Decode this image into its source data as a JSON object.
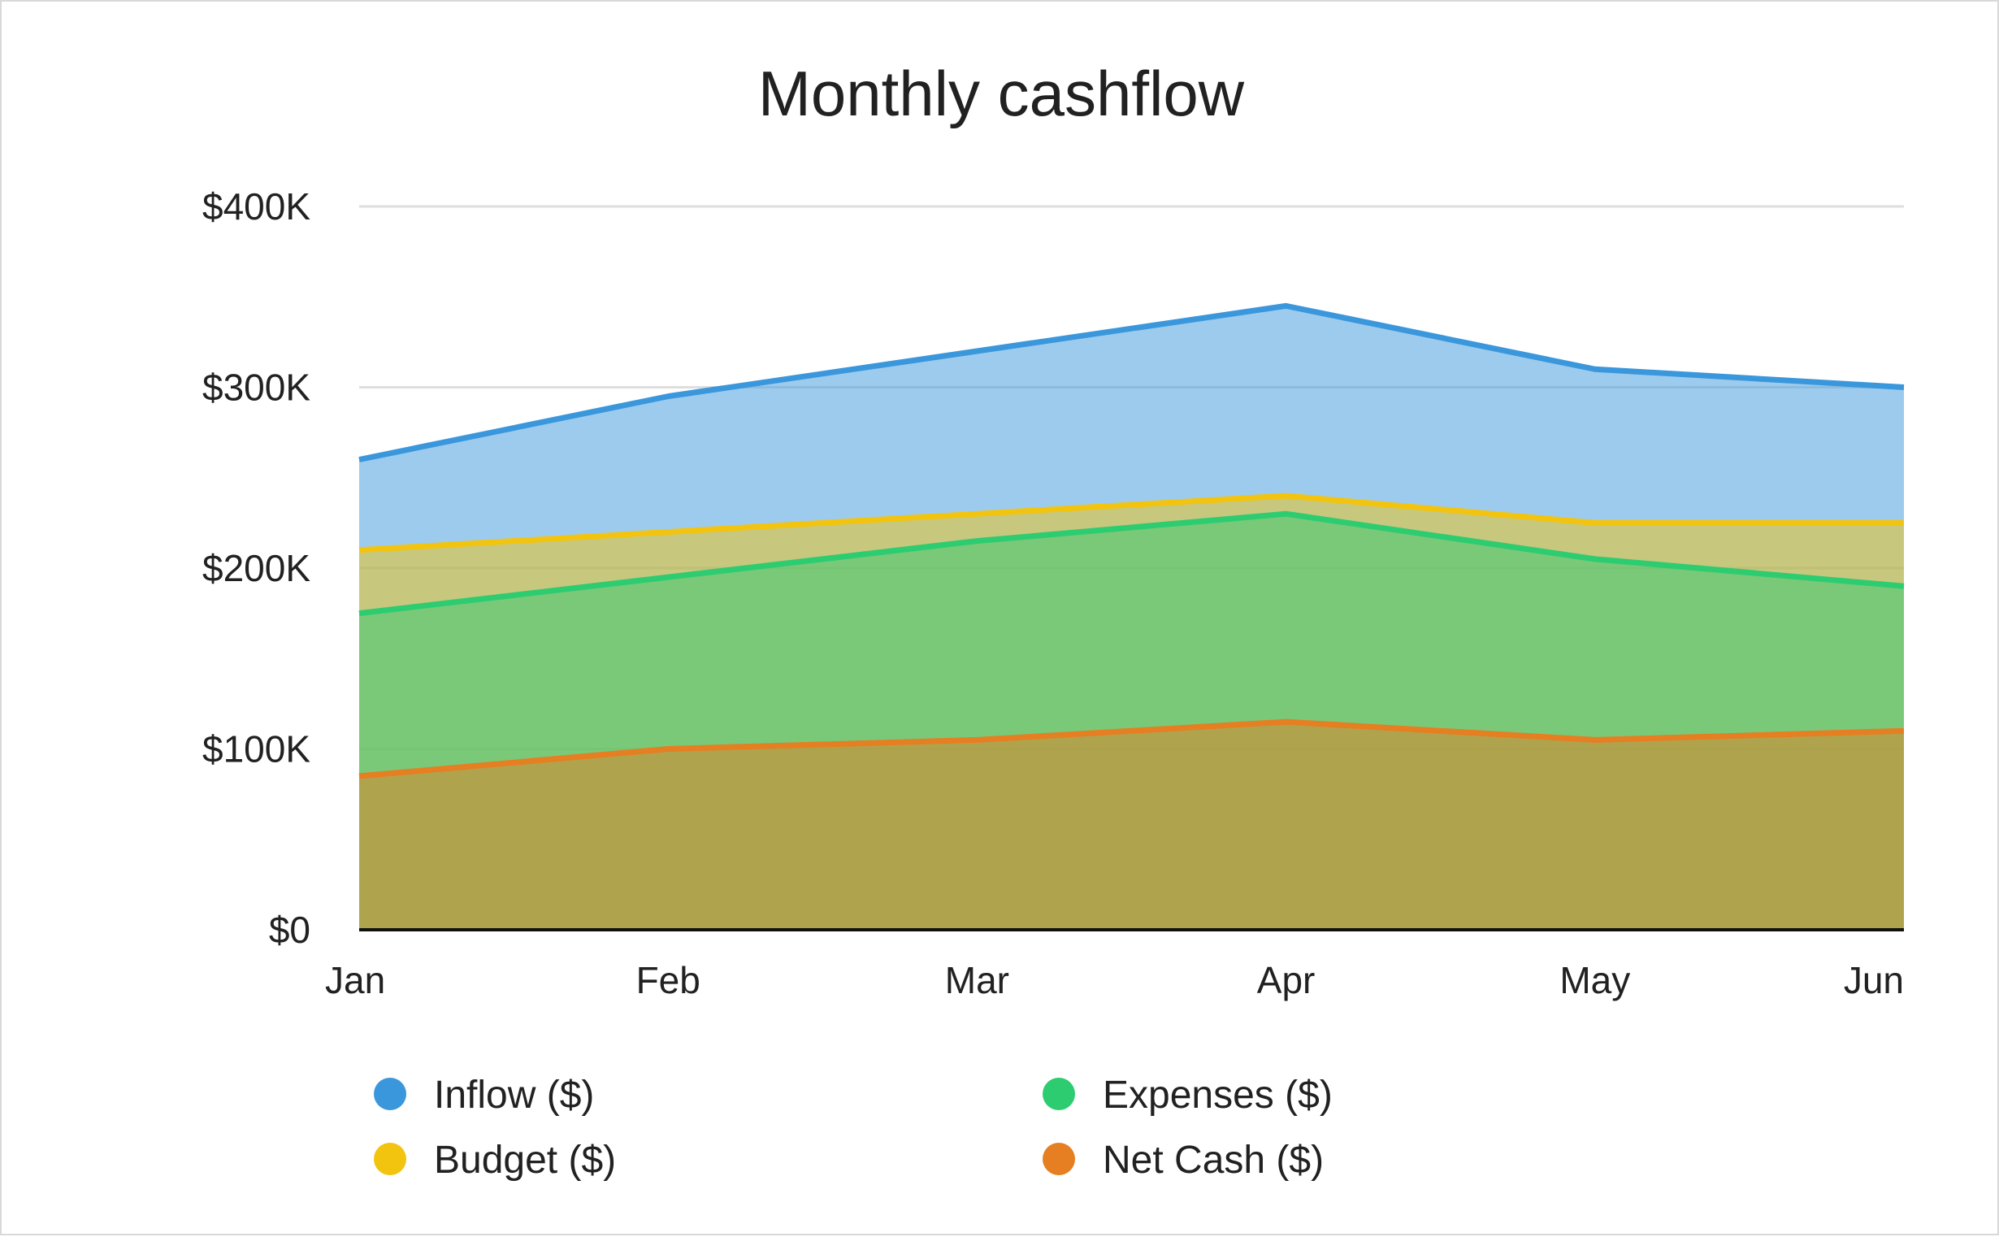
{
  "chart_data": {
    "type": "area",
    "title": "Monthly cashflow",
    "xlabel": "",
    "ylabel": "",
    "categories": [
      "Jan",
      "Feb",
      "Mar",
      "Apr",
      "May",
      "Jun"
    ],
    "ylim": [
      0,
      400000
    ],
    "yticks": [
      0,
      100000,
      200000,
      300000,
      400000
    ],
    "ytick_labels": [
      "$0",
      "$100K",
      "$200K",
      "$300K",
      "$400K"
    ],
    "grid": true,
    "legend_position": "bottom",
    "stacked": false,
    "series": [
      {
        "name": "Inflow ($)",
        "color": "#3b97dc",
        "values": [
          260000,
          295000,
          320000,
          345000,
          310000,
          300000
        ]
      },
      {
        "name": "Budget ($)",
        "color": "#f2c40f",
        "values": [
          210000,
          220000,
          230000,
          240000,
          225000,
          225000
        ]
      },
      {
        "name": "Expenses ($)",
        "color": "#2ecc71",
        "values": [
          175000,
          195000,
          215000,
          230000,
          205000,
          190000
        ]
      },
      {
        "name": "Net Cash ($)",
        "color": "#e67e22",
        "values": [
          85000,
          100000,
          105000,
          115000,
          105000,
          110000
        ]
      }
    ]
  }
}
